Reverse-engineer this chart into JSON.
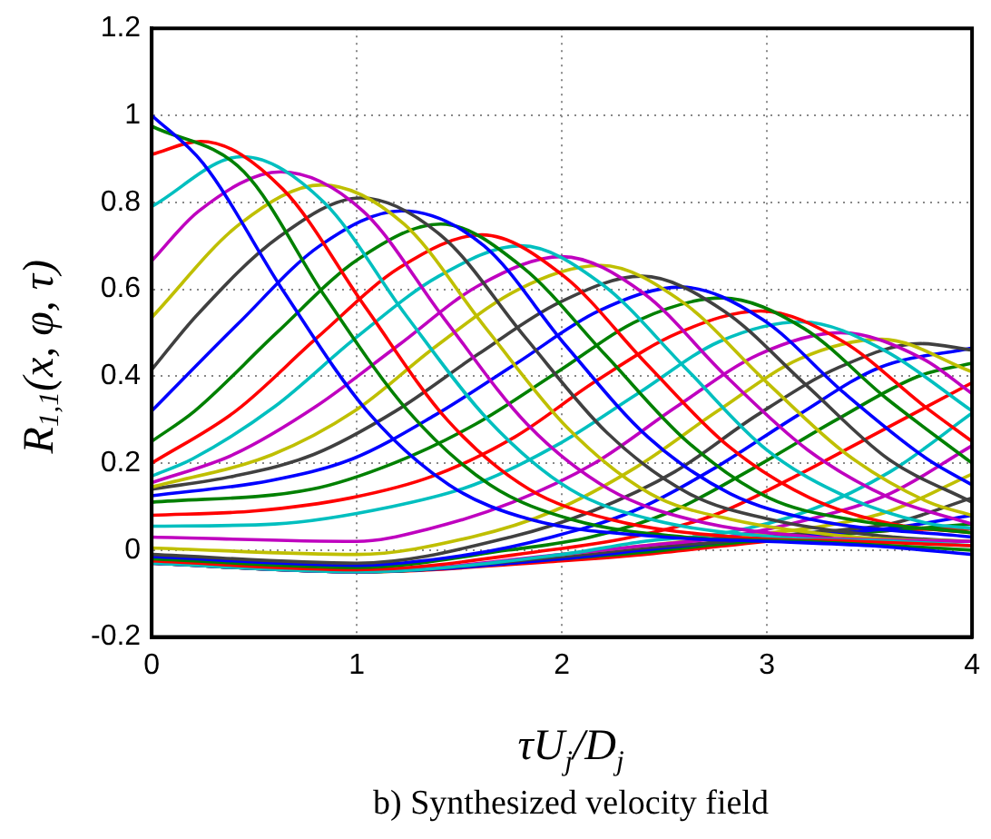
{
  "chart_data": {
    "type": "line",
    "xlabel": "τU$_{j}$/D$_{j}$",
    "ylabel": "R$_{1,1}$(x, φ, τ)",
    "annotations": [
      "b) Synthesized velocity field"
    ],
    "xlim": [
      0,
      4
    ],
    "xticks": [
      0,
      1,
      2,
      3,
      4
    ],
    "ylim": [
      -0.2,
      1.2
    ],
    "yticks": [
      -0.2,
      0,
      0.2,
      0.4,
      0.6,
      0.8,
      1,
      1.2
    ],
    "grid": true,
    "marker": "none",
    "line_style": "solid",
    "series": [
      {
        "color": "#0000ff",
        "x": [
          0,
          0.25,
          0.65,
          1.05,
          1.45,
          1.85,
          2.5,
          3,
          3.5,
          4
        ],
        "values": [
          1,
          0.89,
          0.59,
          0.32,
          0.15,
          0.07,
          0.03,
          0.02,
          0.01,
          -0.01
        ]
      },
      {
        "color": "#008000",
        "x": [
          0,
          0.45,
          0.85,
          1.25,
          1.65,
          2.05,
          2.6,
          3.2,
          4
        ],
        "values": [
          0.975,
          0.87,
          0.58,
          0.32,
          0.15,
          0.07,
          0.03,
          0.02,
          0
        ]
      },
      {
        "color": "#ff0000",
        "x": [
          0,
          0.24,
          0.64,
          1.04,
          1.44,
          1.84,
          2.24,
          2.84,
          3.44,
          4
        ],
        "values": [
          0.91,
          0.94,
          0.83,
          0.56,
          0.3,
          0.14,
          0.07,
          0.03,
          0.02,
          0.01
        ]
      },
      {
        "color": "#00bfbf",
        "x": [
          0,
          0.44,
          0.84,
          1.24,
          1.64,
          2.04,
          2.44,
          3.04,
          3.64,
          4
        ],
        "values": [
          0.79,
          0.905,
          0.8,
          0.54,
          0.3,
          0.14,
          0.07,
          0.03,
          0.02,
          0.01
        ]
      },
      {
        "color": "#bf00bf",
        "x": [
          0,
          0.23,
          0.63,
          1.03,
          1.43,
          1.83,
          2.23,
          2.63,
          3.23,
          4
        ],
        "values": [
          0.665,
          0.78,
          0.87,
          0.78,
          0.53,
          0.29,
          0.14,
          0.07,
          0.03,
          0.02
        ]
      },
      {
        "color": "#bfbf00",
        "x": [
          0,
          0.43,
          0.83,
          1.23,
          1.63,
          2.03,
          2.43,
          2.83,
          3.43,
          4
        ],
        "values": [
          0.535,
          0.75,
          0.84,
          0.75,
          0.51,
          0.28,
          0.13,
          0.07,
          0.03,
          0.02
        ]
      },
      {
        "color": "#404040",
        "x": [
          0,
          0.22,
          0.62,
          1.02,
          1.42,
          1.82,
          2.22,
          2.62,
          3.02,
          3.62,
          4
        ],
        "values": [
          0.415,
          0.54,
          0.72,
          0.81,
          0.72,
          0.49,
          0.27,
          0.13,
          0.07,
          0.03,
          0.02
        ]
      },
      {
        "color": "#0000ff",
        "x": [
          0,
          0.42,
          0.82,
          1.22,
          1.62,
          2.02,
          2.42,
          2.82,
          3.22,
          4
        ],
        "values": [
          0.32,
          0.52,
          0.7,
          0.78,
          0.7,
          0.47,
          0.26,
          0.13,
          0.07,
          0.03
        ]
      },
      {
        "color": "#008000",
        "x": [
          0,
          0.21,
          0.61,
          1.01,
          1.41,
          1.81,
          2.21,
          2.61,
          3.01,
          3.41,
          4
        ],
        "values": [
          0.25,
          0.32,
          0.5,
          0.67,
          0.75,
          0.65,
          0.45,
          0.25,
          0.12,
          0.07,
          0.04
        ]
      },
      {
        "color": "#ff0000",
        "x": [
          0,
          0.41,
          0.81,
          1.21,
          1.61,
          2.01,
          2.41,
          2.81,
          3.21,
          3.61,
          4
        ],
        "values": [
          0.2,
          0.32,
          0.49,
          0.65,
          0.725,
          0.63,
          0.43,
          0.24,
          0.12,
          0.06,
          0.04
        ]
      },
      {
        "color": "#00bfbf",
        "x": [
          0,
          0.2,
          0.6,
          1,
          1.4,
          1.8,
          2.2,
          2.6,
          3,
          3.4,
          3.8,
          4
        ],
        "values": [
          0.17,
          0.21,
          0.33,
          0.49,
          0.63,
          0.7,
          0.61,
          0.42,
          0.23,
          0.12,
          0.06,
          0.05
        ]
      },
      {
        "color": "#bf00bf",
        "x": [
          0,
          0.4,
          0.8,
          1.2,
          1.6,
          2,
          2.4,
          2.8,
          3.2,
          3.6,
          4
        ],
        "values": [
          0.155,
          0.22,
          0.33,
          0.47,
          0.61,
          0.675,
          0.59,
          0.4,
          0.23,
          0.12,
          0.06
        ]
      },
      {
        "color": "#bfbf00",
        "x": [
          0,
          0.59,
          0.99,
          1.39,
          1.79,
          2.19,
          2.59,
          2.99,
          3.39,
          3.79,
          4
        ],
        "values": [
          0.145,
          0.22,
          0.32,
          0.47,
          0.6,
          0.655,
          0.57,
          0.39,
          0.22,
          0.11,
          0.08
        ]
      },
      {
        "color": "#404040",
        "x": [
          0,
          0.4,
          0.79,
          1.19,
          1.59,
          1.99,
          2.39,
          2.79,
          3.19,
          3.59,
          4
        ],
        "values": [
          0.14,
          0.17,
          0.22,
          0.32,
          0.45,
          0.57,
          0.63,
          0.55,
          0.38,
          0.21,
          0.11
        ]
      },
      {
        "color": "#0000ff",
        "x": [
          0,
          0.58,
          0.98,
          1.38,
          1.78,
          2.18,
          2.58,
          2.98,
          3.38,
          3.78,
          4
        ],
        "values": [
          0.125,
          0.16,
          0.21,
          0.31,
          0.43,
          0.55,
          0.605,
          0.53,
          0.36,
          0.21,
          0.15
        ]
      },
      {
        "color": "#008000",
        "x": [
          0,
          0.78,
          1.18,
          1.58,
          1.98,
          2.38,
          2.78,
          3.18,
          3.58,
          4
        ],
        "values": [
          0.11,
          0.14,
          0.2,
          0.29,
          0.41,
          0.53,
          0.58,
          0.51,
          0.35,
          0.2
        ]
      },
      {
        "color": "#ff0000",
        "x": [
          0,
          0.5,
          0.97,
          1.37,
          1.77,
          2.17,
          2.57,
          2.97,
          3.37,
          3.77,
          4
        ],
        "values": [
          0.08,
          0.09,
          0.12,
          0.17,
          0.26,
          0.39,
          0.5,
          0.55,
          0.48,
          0.33,
          0.25
        ]
      },
      {
        "color": "#00bfbf",
        "x": [
          0,
          0.6,
          1.17,
          1.57,
          1.97,
          2.37,
          2.77,
          3.17,
          3.57,
          4
        ],
        "values": [
          0.055,
          0.06,
          0.1,
          0.15,
          0.24,
          0.36,
          0.48,
          0.525,
          0.46,
          0.32
        ]
      },
      {
        "color": "#bf00bf",
        "x": [
          0,
          1,
          1.36,
          1.76,
          2.16,
          2.56,
          2.96,
          3.36,
          3.76,
          4
        ],
        "values": [
          0.03,
          0.02,
          0.05,
          0.11,
          0.2,
          0.33,
          0.45,
          0.5,
          0.44,
          0.36
        ]
      },
      {
        "color": "#bfbf00",
        "x": [
          0,
          1,
          1.56,
          1.96,
          2.36,
          2.76,
          3.16,
          3.56,
          4
        ],
        "values": [
          0.005,
          -0.01,
          0.03,
          0.09,
          0.19,
          0.32,
          0.44,
          0.485,
          0.41
        ]
      },
      {
        "color": "#404040",
        "x": [
          0,
          1,
          1.75,
          2.15,
          2.55,
          2.95,
          3.35,
          3.75,
          4
        ],
        "values": [
          -0.01,
          -0.03,
          0.03,
          0.09,
          0.18,
          0.31,
          0.42,
          0.475,
          0.46
        ]
      },
      {
        "color": "#0000ff",
        "x": [
          0,
          1,
          1.55,
          1.95,
          2.35,
          2.75,
          3.15,
          3.55,
          4
        ],
        "values": [
          -0.015,
          -0.035,
          -0.01,
          0.03,
          0.09,
          0.19,
          0.31,
          0.42,
          0.465
        ]
      },
      {
        "color": "#008000",
        "x": [
          0,
          1,
          1.74,
          2.14,
          2.54,
          2.94,
          3.34,
          3.74,
          4
        ],
        "values": [
          -0.02,
          -0.04,
          0,
          0.03,
          0.09,
          0.19,
          0.3,
          0.4,
          0.43
        ]
      },
      {
        "color": "#ff0000",
        "x": [
          0,
          1,
          1.94,
          2.34,
          2.74,
          3.14,
          3.54,
          4
        ],
        "values": [
          -0.025,
          -0.045,
          0,
          0.03,
          0.08,
          0.17,
          0.27,
          0.385
        ]
      },
      {
        "color": "#00bfbf",
        "x": [
          0,
          1,
          2,
          2.4,
          2.8,
          3.2,
          3.6,
          4
        ],
        "values": [
          -0.03,
          -0.05,
          -0.01,
          0.02,
          0.04,
          0.09,
          0.18,
          0.315
        ]
      },
      {
        "color": "#bf00bf",
        "x": [
          0,
          1,
          2,
          2.4,
          2.8,
          3.2,
          3.6,
          4
        ],
        "values": [
          -0.03,
          -0.05,
          -0.01,
          0.01,
          0.03,
          0.07,
          0.13,
          0.24
        ]
      },
      {
        "color": "#bfbf00",
        "x": [
          2,
          2.4,
          2.8,
          3.2,
          3.6,
          4
        ],
        "values": [
          -0.01,
          0.01,
          0.03,
          0.05,
          0.09,
          0.175
        ]
      },
      {
        "color": "#404040",
        "x": [
          0,
          1,
          2,
          2.4,
          2.8,
          3.2,
          3.6,
          4
        ],
        "values": [
          -0.03,
          -0.05,
          -0.015,
          0.005,
          0.02,
          0.04,
          0.06,
          0.12
        ]
      },
      {
        "color": "#0000ff",
        "x": [
          0,
          1,
          2,
          2.4,
          2.8,
          3.2,
          3.6,
          4
        ],
        "values": [
          -0.03,
          -0.05,
          -0.02,
          0,
          0.02,
          0.035,
          0.05,
          0.08
        ]
      },
      {
        "color": "#008000",
        "x": [
          0,
          1,
          2,
          2.4,
          2.8,
          3.2,
          3.6,
          4
        ],
        "values": [
          -0.03,
          -0.05,
          -0.02,
          -0.005,
          0.015,
          0.03,
          0.045,
          0.06
        ]
      },
      {
        "color": "#ff0000",
        "x": [
          0,
          1,
          2,
          2.4,
          2.8,
          3.2,
          3.6,
          4
        ],
        "values": [
          -0.03,
          -0.05,
          -0.025,
          -0.01,
          0.01,
          0.03,
          0.045,
          0.05
        ]
      }
    ]
  }
}
